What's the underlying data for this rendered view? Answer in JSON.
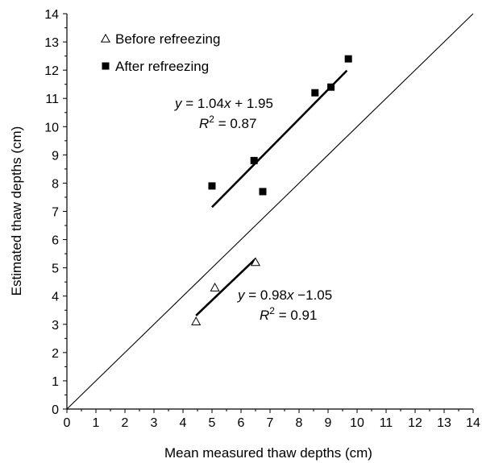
{
  "chart_data": {
    "type": "scatter",
    "title": "",
    "xlabel": "Mean measured thaw depths (cm)",
    "ylabel": "Estimated thaw depths (cm)",
    "xlim": [
      0,
      14
    ],
    "ylim": [
      0,
      14
    ],
    "xticks": [
      "0",
      "1",
      "2",
      "3",
      "4",
      "5",
      "6",
      "7",
      "8",
      "9",
      "10",
      "11",
      "12",
      "13",
      "14"
    ],
    "yticks": [
      "0",
      "1",
      "2",
      "3",
      "4",
      "5",
      "6",
      "7",
      "8",
      "9",
      "10",
      "11",
      "12",
      "13",
      "14"
    ],
    "grid": false,
    "legend_position": "top-left",
    "reference_line": {
      "type": "1:1",
      "x": [
        0,
        14
      ],
      "y": [
        0,
        14
      ]
    },
    "series": [
      {
        "name": "Before refreezing",
        "marker": "open-triangle",
        "points": [
          {
            "x": 4.45,
            "y": 3.1
          },
          {
            "x": 5.1,
            "y": 4.3
          },
          {
            "x": 6.5,
            "y": 5.2
          }
        ],
        "fit": {
          "x_range": [
            4.45,
            6.5
          ],
          "equation_prefix": "y = 0.98x −1.05",
          "r2": "0.91"
        }
      },
      {
        "name": "After refreezing",
        "marker": "filled-square",
        "points": [
          {
            "x": 5.0,
            "y": 7.9
          },
          {
            "x": 6.45,
            "y": 8.8
          },
          {
            "x": 6.75,
            "y": 7.7
          },
          {
            "x": 8.55,
            "y": 11.2
          },
          {
            "x": 9.1,
            "y": 11.4
          },
          {
            "x": 9.7,
            "y": 12.4
          }
        ],
        "fit": {
          "x_range": [
            5.0,
            9.65
          ],
          "equation_prefix": "y = 1.04x + 1.95",
          "r2": "0.87"
        }
      }
    ]
  }
}
